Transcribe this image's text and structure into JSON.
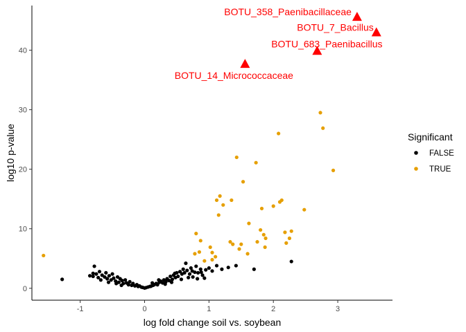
{
  "chart_data": {
    "type": "scatter",
    "title": "",
    "xlabel": "log fold change soil vs. soybean",
    "ylabel": "log10 p-value",
    "xlim": [
      -1.75,
      3.85
    ],
    "ylim": [
      -2.0,
      47.5
    ],
    "x_ticks": [
      -1,
      0,
      1,
      2,
      3
    ],
    "y_ticks": [
      0,
      10,
      20,
      30,
      40
    ],
    "grid": false,
    "legend": {
      "title": "Significant",
      "placement": "right",
      "entries": [
        {
          "label": "FALSE",
          "color": "#000000"
        },
        {
          "label": "TRUE",
          "color": "#E69F00"
        }
      ]
    },
    "series": [
      {
        "name": "TRUE",
        "color": "#E69F00",
        "points": [
          [
            -1.57,
            5.5
          ],
          [
            0.8,
            9.2
          ],
          [
            0.85,
            6.1
          ],
          [
            0.87,
            8.0
          ],
          [
            0.93,
            4.6
          ],
          [
            0.78,
            5.8
          ],
          [
            1.02,
            6.9
          ],
          [
            1.05,
            6.0
          ],
          [
            1.05,
            4.8
          ],
          [
            1.1,
            5.3
          ],
          [
            1.12,
            14.8
          ],
          [
            1.15,
            12.3
          ],
          [
            1.17,
            15.5
          ],
          [
            1.22,
            14.0
          ],
          [
            1.33,
            7.8
          ],
          [
            1.35,
            14.8
          ],
          [
            1.37,
            7.4
          ],
          [
            1.43,
            22.0
          ],
          [
            1.47,
            6.6
          ],
          [
            1.5,
            7.4
          ],
          [
            1.53,
            17.9
          ],
          [
            1.6,
            5.8
          ],
          [
            1.62,
            10.9
          ],
          [
            1.73,
            21.1
          ],
          [
            1.75,
            7.8
          ],
          [
            1.8,
            9.8
          ],
          [
            1.82,
            13.4
          ],
          [
            1.85,
            9.0
          ],
          [
            1.87,
            6.9
          ],
          [
            1.88,
            8.4
          ],
          [
            2.0,
            13.8
          ],
          [
            2.08,
            26.0
          ],
          [
            2.1,
            14.5
          ],
          [
            2.13,
            14.8
          ],
          [
            2.18,
            9.4
          ],
          [
            2.2,
            7.6
          ],
          [
            2.25,
            8.4
          ],
          [
            2.28,
            9.6
          ],
          [
            2.48,
            13.2
          ],
          [
            2.73,
            29.5
          ],
          [
            2.77,
            26.9
          ],
          [
            2.93,
            19.8
          ]
        ]
      },
      {
        "name": "FALSE",
        "color": "#000000",
        "points": [
          [
            -1.28,
            1.5
          ],
          [
            -0.8,
            2.0
          ],
          [
            -0.8,
            2.5
          ],
          [
            -0.78,
            3.7
          ],
          [
            -0.75,
            2.4
          ],
          [
            -0.72,
            1.8
          ],
          [
            -0.7,
            2.8
          ],
          [
            -0.66,
            2.2
          ],
          [
            -0.62,
            1.9
          ],
          [
            -0.6,
            2.6
          ],
          [
            -0.58,
            1.6
          ],
          [
            -0.55,
            2.1
          ],
          [
            -0.52,
            1.4
          ],
          [
            -0.5,
            2.4
          ],
          [
            -0.48,
            1.7
          ],
          [
            -0.45,
            1.2
          ],
          [
            -0.42,
            1.9
          ],
          [
            -0.4,
            1.0
          ],
          [
            -0.38,
            1.6
          ],
          [
            -0.35,
            1.3
          ],
          [
            -0.33,
            0.8
          ],
          [
            -0.3,
            1.4
          ],
          [
            -0.28,
            0.9
          ],
          [
            -0.25,
            0.6
          ],
          [
            -0.23,
            1.1
          ],
          [
            -0.2,
            0.5
          ],
          [
            -0.18,
            0.8
          ],
          [
            -0.15,
            0.4
          ],
          [
            -0.12,
            0.6
          ],
          [
            -0.1,
            0.3
          ],
          [
            -0.08,
            0.4
          ],
          [
            -0.05,
            0.2
          ],
          [
            -0.03,
            0.15
          ],
          [
            0.0,
            0.05
          ],
          [
            0.02,
            0.1
          ],
          [
            0.05,
            0.2
          ],
          [
            0.08,
            0.3
          ],
          [
            0.1,
            0.35
          ],
          [
            0.13,
            0.5
          ],
          [
            0.15,
            0.6
          ],
          [
            0.18,
            0.8
          ],
          [
            0.2,
            0.6
          ],
          [
            0.23,
            1.0
          ],
          [
            0.25,
            1.2
          ],
          [
            0.28,
            0.9
          ],
          [
            0.3,
            1.4
          ],
          [
            0.33,
            1.1
          ],
          [
            0.35,
            1.6
          ],
          [
            0.38,
            1.3
          ],
          [
            0.4,
            2.0
          ],
          [
            0.43,
            1.5
          ],
          [
            0.45,
            2.2
          ],
          [
            0.48,
            1.8
          ],
          [
            0.5,
            2.6
          ],
          [
            0.52,
            2.0
          ],
          [
            0.55,
            2.8
          ],
          [
            0.58,
            2.4
          ],
          [
            0.6,
            3.2
          ],
          [
            0.62,
            2.6
          ],
          [
            0.64,
            4.2
          ],
          [
            0.66,
            3.0
          ],
          [
            0.7,
            2.4
          ],
          [
            0.72,
            3.4
          ],
          [
            0.75,
            1.9
          ],
          [
            0.78,
            2.7
          ],
          [
            0.8,
            3.7
          ],
          [
            0.83,
            2.6
          ],
          [
            0.87,
            3.2
          ],
          [
            0.9,
            2.2
          ],
          [
            0.93,
            1.7
          ],
          [
            0.95,
            3.1
          ],
          [
            1.0,
            3.4
          ],
          [
            1.05,
            2.9
          ],
          [
            1.12,
            3.8
          ],
          [
            1.2,
            3.2
          ],
          [
            1.3,
            3.5
          ],
          [
            1.42,
            3.8
          ],
          [
            1.7,
            3.2
          ],
          [
            2.28,
            4.5
          ],
          [
            -0.85,
            2.1
          ],
          [
            -0.68,
            1.4
          ],
          [
            -0.56,
            1.0
          ],
          [
            -0.44,
            0.8
          ],
          [
            -0.36,
            0.5
          ],
          [
            0.12,
            0.9
          ],
          [
            0.22,
            1.4
          ],
          [
            0.32,
            0.7
          ],
          [
            0.42,
            1.0
          ],
          [
            0.47,
            2.5
          ],
          [
            0.57,
            1.5
          ],
          [
            0.68,
            1.8
          ],
          [
            0.74,
            2.9
          ],
          [
            0.82,
            1.6
          ],
          [
            0.88,
            2.7
          ]
        ]
      },
      {
        "name": "annotated",
        "color": "#FF0000",
        "marker": "triangle",
        "points": [
          [
            1.56,
            37.6
          ],
          [
            2.68,
            39.8
          ],
          [
            3.3,
            45.5
          ],
          [
            3.6,
            42.9
          ]
        ]
      }
    ],
    "annotations": [
      {
        "text": "BOTU_358_Paenibacillaceae",
        "x": 3.3,
        "y": 45.5,
        "color": "#FF0000"
      },
      {
        "text": "BOTU_7_Bacillus",
        "x": 3.6,
        "y": 42.9,
        "color": "#FF0000"
      },
      {
        "text": "BOTU_683_Paenibacillus",
        "x": 2.68,
        "y": 39.8,
        "color": "#FF0000"
      },
      {
        "text": "BOTU_14_Micrococcaceae",
        "x": 1.56,
        "y": 37.6,
        "color": "#FF0000"
      }
    ]
  }
}
